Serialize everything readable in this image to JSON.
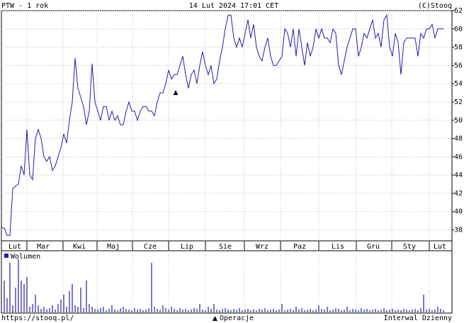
{
  "chart_data": {
    "type": "line",
    "title": "PTW - 1 rok",
    "date": "14 Lut 2024 17:01 CET",
    "copyright": "(C)Stooq",
    "source": "https://stooq.pl/",
    "interval": "Interwal Dzienny",
    "operations_label": "Operacje",
    "xlim": [
      0,
      159
    ],
    "ylim": [
      36.8,
      62
    ],
    "yticks": [
      38,
      40,
      42,
      44,
      46,
      48,
      50,
      52,
      54,
      56,
      58,
      60,
      62
    ],
    "xticks": [
      9,
      21.75,
      33.75,
      46.25,
      59,
      72,
      85.75,
      98.5,
      112,
      125.25,
      137.75,
      151
    ],
    "month_ticks": [
      {
        "value": 4.75,
        "label": "Lut"
      },
      {
        "value": 14.75,
        "label": "Mar"
      },
      {
        "value": 27.5,
        "label": "Kwi"
      },
      {
        "value": 39.5,
        "label": "Maj"
      },
      {
        "value": 52.5,
        "label": "Cze"
      },
      {
        "value": 65.5,
        "label": "Lip"
      },
      {
        "value": 79,
        "label": "Sie"
      },
      {
        "value": 92,
        "label": "Wrz"
      },
      {
        "value": 105.25,
        "label": "Paz"
      },
      {
        "value": 118.75,
        "label": "Lis"
      },
      {
        "value": 131.25,
        "label": "Gru"
      },
      {
        "value": 144,
        "label": "Sty"
      },
      {
        "value": 154.75,
        "label": "Lut"
      }
    ],
    "grid": true,
    "series": [
      {
        "name": "PTW",
        "color": "#1f1fa8",
        "values": [
          38.2,
          38.2,
          37.4,
          37.4,
          42.5,
          42.8,
          43,
          45,
          44,
          49,
          44,
          43.5,
          48,
          49,
          48,
          46,
          45.5,
          46,
          44.5,
          45,
          46,
          47,
          48.5,
          47.5,
          50,
          52,
          56.8,
          53.5,
          52.5,
          51.5,
          49.5,
          51,
          56.2,
          52,
          51,
          50,
          51.5,
          51.5,
          50,
          51,
          50,
          50.5,
          49.5,
          49.5,
          51,
          52,
          51,
          51,
          50,
          51,
          51.5,
          51.5,
          51,
          51,
          50.5,
          52,
          53,
          53,
          54,
          55.5,
          54.5,
          55,
          55,
          56,
          57,
          55,
          53.5,
          55,
          55.5,
          54,
          56,
          57.5,
          56,
          55,
          56,
          54,
          54.5,
          56.5,
          58,
          60,
          61.5,
          61.5,
          59,
          58,
          59,
          58,
          59.5,
          61,
          59,
          60.5,
          58,
          57,
          56.5,
          58,
          59,
          57,
          56,
          56,
          56.5,
          57,
          60,
          59.5,
          58,
          60,
          57,
          60,
          58,
          56,
          58.5,
          57,
          58,
          60,
          59,
          60,
          59,
          59,
          58.5,
          60,
          59.5,
          56,
          55,
          56.5,
          58,
          59,
          60,
          60,
          57,
          58,
          59.5,
          59,
          60,
          61,
          59,
          59.5,
          58,
          61,
          61.5,
          58,
          57,
          59.5,
          58.5,
          55,
          58.5,
          59,
          59,
          59,
          59,
          57,
          59.5,
          59,
          60,
          60,
          60.5,
          59,
          60,
          60,
          60
        ]
      }
    ],
    "operations": [
      {
        "x": 61.5,
        "y": 53
      }
    ],
    "volume": {
      "name": "Wolumen",
      "color": "#1f1fa8",
      "vlim": [
        0,
        85
      ],
      "values": [
        5,
        45,
        20,
        70,
        10,
        35,
        75,
        45,
        40,
        50,
        8,
        12,
        25,
        10,
        5,
        8,
        4,
        6,
        10,
        4,
        12,
        18,
        25,
        8,
        30,
        40,
        10,
        8,
        35,
        6,
        45,
        12,
        8,
        5,
        4,
        6,
        8,
        3,
        5,
        10,
        4,
        3,
        6,
        8,
        5,
        4,
        3,
        6,
        4,
        5,
        3,
        4,
        6,
        70,
        8,
        5,
        4,
        10,
        6,
        4,
        8,
        5,
        3,
        6,
        4,
        5,
        3,
        4,
        6,
        5,
        12,
        4,
        3,
        8,
        5,
        12,
        4,
        3,
        5,
        6,
        4,
        3,
        5,
        4,
        6,
        3,
        4,
        5,
        3,
        4,
        3,
        5,
        4,
        6,
        3,
        4,
        5,
        3,
        4,
        12,
        3,
        4,
        5,
        3,
        8,
        4,
        6,
        3,
        4,
        5,
        3,
        4,
        10,
        5,
        4,
        8,
        3,
        4,
        6,
        5,
        3,
        4,
        8,
        3,
        5,
        4,
        3,
        6,
        4,
        5,
        3,
        4,
        5,
        3,
        4,
        6,
        3,
        4,
        5,
        3,
        4,
        3,
        5,
        4,
        3,
        4,
        5,
        3,
        6,
        25,
        4,
        5,
        3,
        4,
        8,
        5,
        3
      ]
    }
  }
}
